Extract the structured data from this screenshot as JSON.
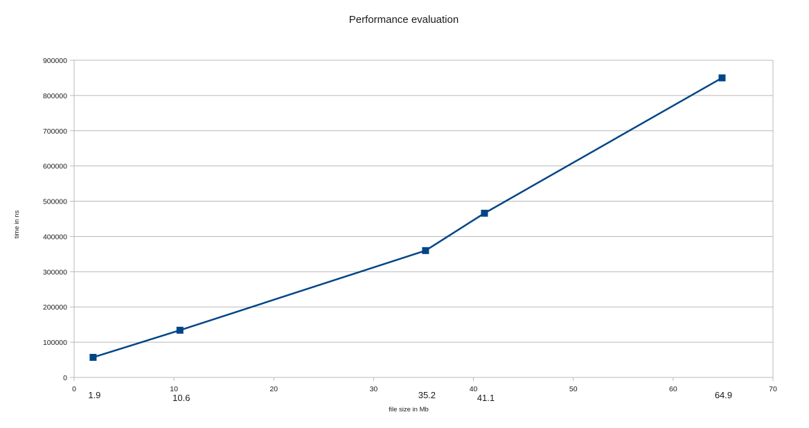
{
  "chart_data": {
    "type": "line",
    "title": "Performance evaluation",
    "xlabel": "file size in Mb",
    "ylabel": "time in ns",
    "xlim": [
      0,
      70
    ],
    "ylim": [
      0,
      900000
    ],
    "x_ticks": [
      0,
      10,
      20,
      30,
      40,
      50,
      60,
      70
    ],
    "y_ticks": [
      0,
      100000,
      200000,
      300000,
      400000,
      500000,
      600000,
      700000,
      800000,
      900000
    ],
    "grid": "horizontal",
    "series": [
      {
        "x": [
          1.9,
          10.6,
          35.2,
          41.1,
          64.9
        ],
        "y": [
          57000,
          134000,
          360000,
          466000,
          850000
        ],
        "color": "#004586",
        "marker": "square"
      }
    ],
    "annotations": [
      {
        "text": "1.9",
        "x": 1.9
      },
      {
        "text": "10.6",
        "x": 10.6
      },
      {
        "text": "35.2",
        "x": 35.2
      },
      {
        "text": "41.1",
        "x": 41.1
      },
      {
        "text": "64.9",
        "x": 64.9
      }
    ]
  }
}
